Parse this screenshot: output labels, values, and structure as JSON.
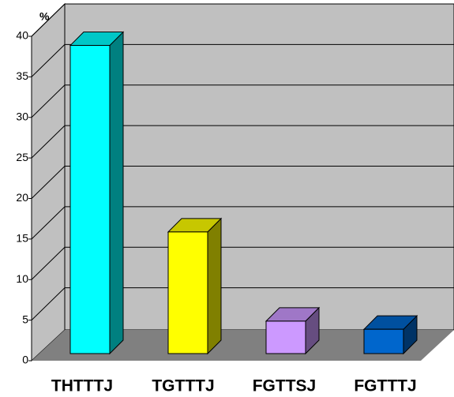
{
  "chart_data": {
    "type": "bar3d",
    "y_label": "%",
    "categories": [
      "THTTTJ",
      "TGTTTJ",
      "FGTTSJ",
      "FGTTTJ"
    ],
    "values": [
      38,
      15,
      4,
      3
    ],
    "colors": [
      "#00ffff",
      "#ffff00",
      "#cc99ff",
      "#0066cc"
    ],
    "ylim": [
      0,
      40
    ],
    "yticks": [
      0,
      5,
      10,
      15,
      20,
      25,
      30,
      35,
      40
    ],
    "grid": true
  }
}
